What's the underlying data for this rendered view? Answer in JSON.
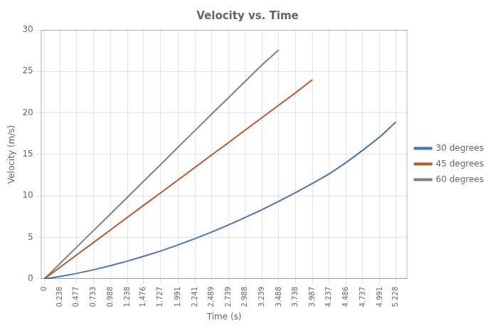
{
  "chart_data": {
    "type": "line",
    "title": "Velocity vs. Time",
    "x_label": "Time (s)",
    "y_label": "Velocity (m/s)",
    "series": [
      {
        "name": "30 degrees",
        "color": "#4472c4",
        "x": [
          0,
          0.238,
          0.477,
          0.733,
          0.988,
          1.238,
          1.476,
          1.727,
          1.991,
          2.241,
          2.489,
          2.739,
          2.988,
          3.239,
          3.488,
          3.738,
          3.987,
          4.237,
          4.486,
          4.737,
          4.991,
          5.228
        ],
        "values": [
          0,
          0.3,
          0.65,
          1.1,
          1.6,
          2.15,
          2.72,
          3.35,
          4.1,
          4.85,
          5.65,
          6.5,
          7.4,
          8.35,
          9.35,
          10.4,
          11.5,
          12.65,
          14.0,
          15.5,
          17.1,
          18.9
        ]
      },
      {
        "name": "45 degrees",
        "color": "#c0532a",
        "x": [
          0,
          0.238,
          0.477,
          0.733,
          0.988,
          1.238,
          1.476,
          1.727,
          1.991,
          2.241,
          2.489,
          2.739,
          2.988,
          3.239,
          3.488,
          3.738,
          3.987
        ],
        "values": [
          0,
          1.43,
          2.87,
          4.4,
          5.93,
          7.43,
          8.86,
          10.35,
          11.94,
          13.44,
          14.93,
          16.41,
          17.94,
          19.44,
          20.94,
          22.43,
          24.0
        ]
      },
      {
        "name": "60 degrees",
        "color": "#808080",
        "x": [
          0,
          0.238,
          0.477,
          0.733,
          0.988,
          1.238,
          1.476,
          1.727,
          1.991,
          2.241,
          2.489,
          2.739,
          2.988,
          3.239,
          3.488
        ],
        "values": [
          0,
          1.9,
          3.8,
          5.84,
          7.87,
          9.86,
          11.77,
          13.76,
          15.88,
          17.88,
          19.86,
          21.83,
          23.81,
          25.8,
          27.6
        ]
      }
    ],
    "xlim": [
      -0.05,
      5.4
    ],
    "xticks": [
      0,
      0.238,
      0.477,
      0.733,
      0.988,
      1.238,
      1.476,
      1.727,
      1.991,
      2.241,
      2.489,
      2.739,
      2.988,
      3.239,
      3.488,
      3.738,
      3.987,
      4.237,
      4.486,
      4.737,
      4.991,
      5.228
    ],
    "ylim": [
      0,
      30
    ],
    "yticks": [
      0,
      5,
      10,
      15,
      20,
      25,
      30
    ],
    "grid": true,
    "legend": "right"
  }
}
